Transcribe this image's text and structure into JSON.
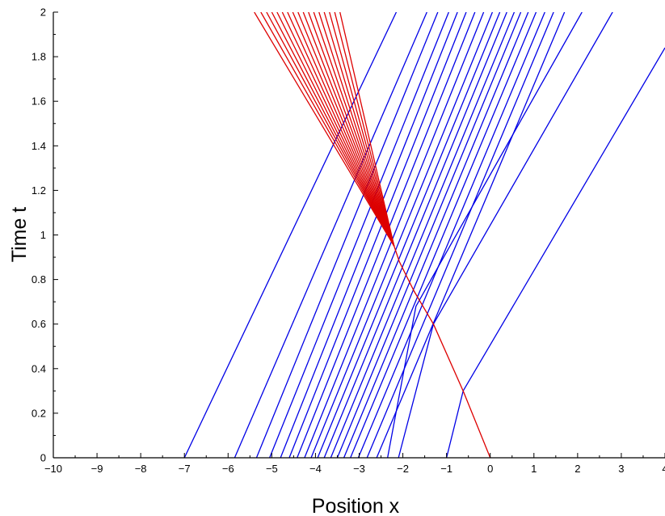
{
  "chart_data": {
    "type": "line",
    "title": "",
    "xlabel": "Position x",
    "ylabel": "Time t",
    "xlim": [
      -10,
      4
    ],
    "ylim": [
      0,
      2
    ],
    "xticks": [
      -10,
      -9,
      -8,
      -7,
      -6,
      -5,
      -4,
      -3,
      -2,
      -1,
      0,
      1,
      2,
      3,
      4
    ],
    "yticks": [
      0,
      0.2,
      0.4,
      0.6,
      0.8,
      1,
      1.2,
      1.4,
      1.6,
      1.8,
      2
    ],
    "xtick_labels": [
      "−10",
      "−9",
      "−8",
      "−7",
      "−6",
      "−5",
      "−4",
      "−3",
      "−2",
      "−1",
      "0",
      "1",
      "2",
      "3",
      "4"
    ],
    "ytick_labels": [
      "0",
      "0.2",
      "0.4",
      "0.6",
      "0.8",
      "1",
      "1.2",
      "1.4",
      "1.6",
      "1.8",
      "2"
    ],
    "colors": {
      "blue": "#0000e6",
      "red": "#dd0000"
    },
    "series": [
      {
        "color": "blue",
        "lines": [
          [
            [
              -7.0,
              0
            ],
            [
              -2.15,
              2
            ]
          ],
          [
            [
              -5.85,
              0
            ],
            [
              -1.45,
              2
            ]
          ],
          [
            [
              -5.35,
              0
            ],
            [
              -1.2,
              2
            ]
          ],
          [
            [
              -5.05,
              0
            ],
            [
              -0.95,
              2
            ]
          ],
          [
            [
              -4.8,
              0
            ],
            [
              -0.75,
              2
            ]
          ],
          [
            [
              -4.6,
              0
            ],
            [
              -0.55,
              2
            ]
          ],
          [
            [
              -4.42,
              0
            ],
            [
              -0.35,
              2
            ]
          ],
          [
            [
              -4.25,
              0
            ],
            [
              -0.15,
              2
            ]
          ],
          [
            [
              -4.1,
              0
            ],
            [
              0.05,
              2
            ]
          ],
          [
            [
              -3.95,
              0
            ],
            [
              0.22,
              2
            ]
          ],
          [
            [
              -3.8,
              0
            ],
            [
              0.38,
              2
            ]
          ],
          [
            [
              -3.65,
              0
            ],
            [
              0.55,
              2
            ]
          ],
          [
            [
              -3.5,
              0
            ],
            [
              0.7,
              2
            ]
          ],
          [
            [
              -3.35,
              0
            ],
            [
              0.87,
              2
            ]
          ],
          [
            [
              -3.2,
              0
            ],
            [
              1.05,
              2
            ]
          ],
          [
            [
              -3.02,
              0
            ],
            [
              1.25,
              2
            ]
          ],
          [
            [
              -2.82,
              0
            ],
            [
              1.45,
              2
            ]
          ],
          [
            [
              -2.6,
              0
            ],
            [
              1.7,
              2
            ]
          ],
          [
            [
              -2.35,
              0
            ],
            [
              -1.7,
              0.68
            ],
            [
              2.1,
              2
            ]
          ],
          [
            [
              -2.1,
              0
            ],
            [
              -1.3,
              0.6
            ],
            [
              2.8,
              2
            ]
          ],
          [
            [
              -1.0,
              0
            ],
            [
              -0.62,
              0.3
            ],
            [
              4.0,
              1.84
            ]
          ]
        ]
      },
      {
        "color": "red",
        "lines": [
          [
            [
              0,
              0
            ],
            [
              -0.62,
              0.3
            ],
            [
              -1.3,
              0.6
            ],
            [
              -1.75,
              0.75
            ],
            [
              -2.08,
              0.88
            ],
            [
              -2.2,
              0.95
            ]
          ],
          [
            [
              -2.2,
              0.95
            ],
            [
              -5.4,
              2
            ]
          ],
          [
            [
              -2.2,
              0.95
            ],
            [
              -5.25,
              2
            ]
          ],
          [
            [
              -2.2,
              0.95
            ],
            [
              -5.12,
              2
            ]
          ],
          [
            [
              -2.2,
              0.95
            ],
            [
              -5.0,
              2
            ]
          ],
          [
            [
              -2.2,
              0.95
            ],
            [
              -4.88,
              2
            ]
          ],
          [
            [
              -2.2,
              0.95
            ],
            [
              -4.76,
              2
            ]
          ],
          [
            [
              -2.2,
              0.95
            ],
            [
              -4.64,
              2
            ]
          ],
          [
            [
              -2.2,
              0.95
            ],
            [
              -4.52,
              2
            ]
          ],
          [
            [
              -2.2,
              0.95
            ],
            [
              -4.4,
              2
            ]
          ],
          [
            [
              -2.2,
              0.95
            ],
            [
              -4.28,
              2
            ]
          ],
          [
            [
              -2.2,
              0.95
            ],
            [
              -4.16,
              2
            ]
          ],
          [
            [
              -2.2,
              0.95
            ],
            [
              -4.04,
              2
            ]
          ],
          [
            [
              -2.2,
              0.95
            ],
            [
              -3.92,
              2
            ]
          ],
          [
            [
              -2.2,
              0.95
            ],
            [
              -3.8,
              2
            ]
          ],
          [
            [
              -2.2,
              0.95
            ],
            [
              -3.68,
              2
            ]
          ],
          [
            [
              -2.2,
              0.95
            ],
            [
              -3.56,
              2
            ]
          ],
          [
            [
              -2.2,
              0.95
            ],
            [
              -3.44,
              2
            ]
          ]
        ]
      }
    ]
  }
}
